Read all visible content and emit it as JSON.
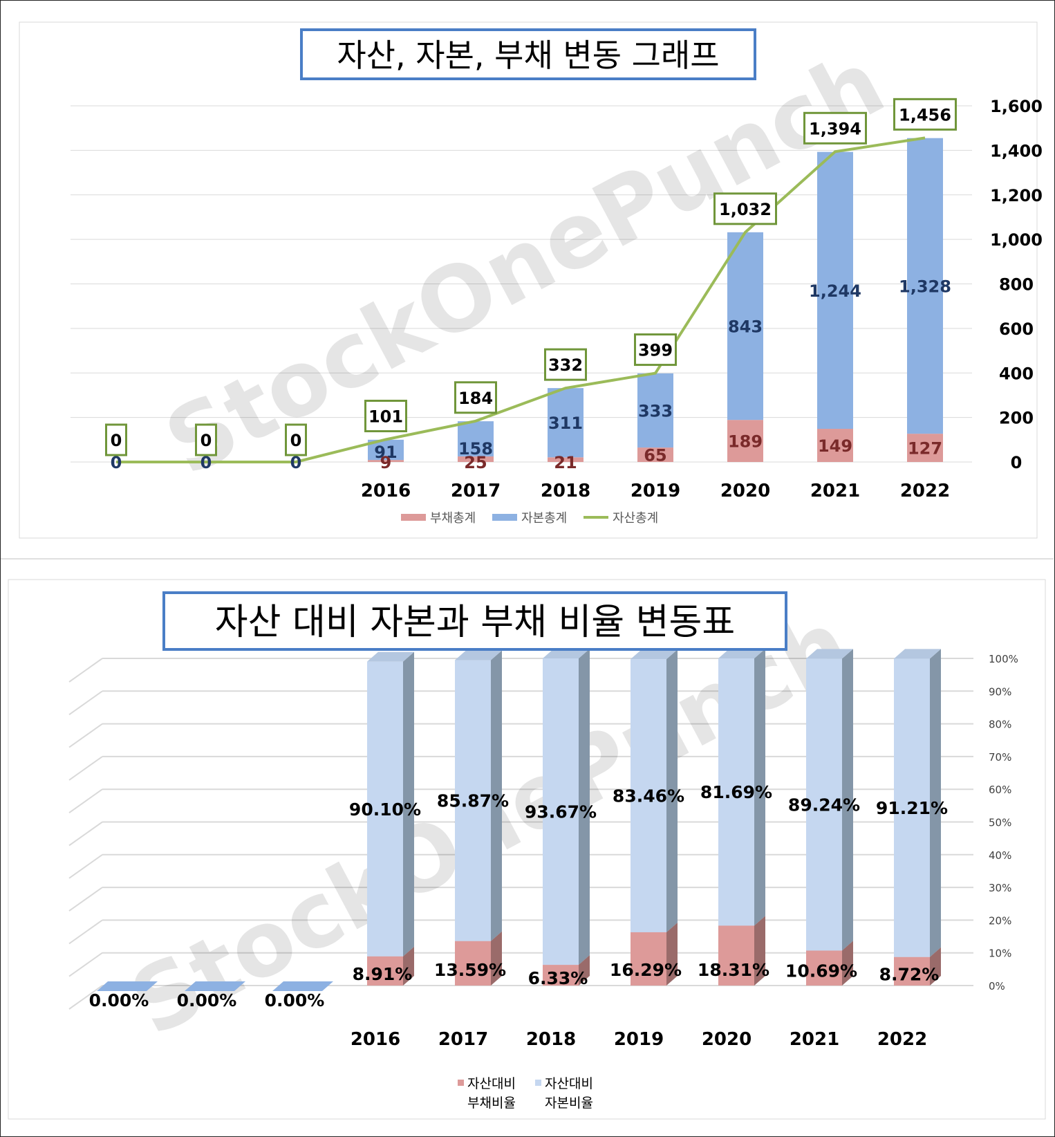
{
  "chart_data": [
    {
      "type": "bar",
      "title": "자산, 자본, 부채 변동 그래프",
      "categories": [
        "",
        "",
        "",
        "2016",
        "2017",
        "2018",
        "2019",
        "2020",
        "2021",
        "2022"
      ],
      "y_ticks": [
        "0",
        "200",
        "400",
        "600",
        "800",
        "1,000",
        "1,200",
        "1,400",
        "1,600"
      ],
      "ylim": [
        0,
        1600
      ],
      "axis_position": "right",
      "grid": true,
      "legend_position": "bottom",
      "stacked": true,
      "series": [
        {
          "name": "부채총계",
          "kind": "bar",
          "color": "#dd9a99",
          "values": [
            0,
            0,
            0,
            9,
            25,
            21,
            65,
            189,
            149,
            127
          ],
          "labels": [
            "0",
            "0",
            "0",
            "9",
            "25",
            "21",
            "65",
            "189",
            "149",
            "127"
          ]
        },
        {
          "name": "자본총계",
          "kind": "bar",
          "color": "#8db1e2",
          "values": [
            0,
            0,
            0,
            91,
            158,
            311,
            333,
            843,
            1244,
            1328
          ],
          "labels": [
            "",
            "",
            "",
            "91",
            "158",
            "311",
            "333",
            "843",
            "1,244",
            "1,328"
          ]
        },
        {
          "name": "자산총계",
          "kind": "line",
          "color": "#9bbb59",
          "values": [
            0,
            0,
            0,
            101,
            184,
            332,
            399,
            1032,
            1394,
            1456
          ],
          "labels": [
            "0",
            "0",
            "0",
            "101",
            "184",
            "332",
            "399",
            "1,032",
            "1,394",
            "1,456"
          ]
        }
      ]
    },
    {
      "type": "bar",
      "title": "자산 대비 자본과 부채 비율 변동표",
      "categories": [
        "",
        "",
        "",
        "2016",
        "2017",
        "2018",
        "2019",
        "2020",
        "2021",
        "2022"
      ],
      "y_ticks": [
        "0%",
        "10%",
        "20%",
        "30%",
        "40%",
        "50%",
        "60%",
        "70%",
        "80%",
        "90%",
        "100%"
      ],
      "ylim": [
        0,
        100
      ],
      "axis_position": "right",
      "grid": true,
      "legend_position": "bottom",
      "stacked": true,
      "style": "3d",
      "series": [
        {
          "name": "자산대비 부채비율",
          "color": "#dd9a99",
          "values": [
            0,
            0,
            0,
            8.91,
            13.59,
            6.33,
            16.29,
            18.31,
            10.69,
            8.72
          ],
          "labels": [
            "0.00%",
            "0.00%",
            "0.00%",
            "8.91%",
            "13.59%",
            "6.33%",
            "16.29%",
            "18.31%",
            "10.69%",
            "8.72%"
          ]
        },
        {
          "name": "자산대비 자본비율",
          "color": "#c5d7f0",
          "values": [
            0,
            0,
            0,
            90.1,
            85.87,
            93.67,
            83.46,
            81.69,
            89.24,
            91.21
          ],
          "labels": [
            "",
            "",
            "",
            "90.10%",
            "85.87%",
            "93.67%",
            "83.46%",
            "81.69%",
            "89.24%",
            "91.21%"
          ]
        }
      ],
      "legend_labels": [
        [
          "자산대비",
          "부채비율"
        ],
        [
          "자산대비",
          "자본비율"
        ]
      ]
    }
  ],
  "watermark": "StockOnePunch"
}
